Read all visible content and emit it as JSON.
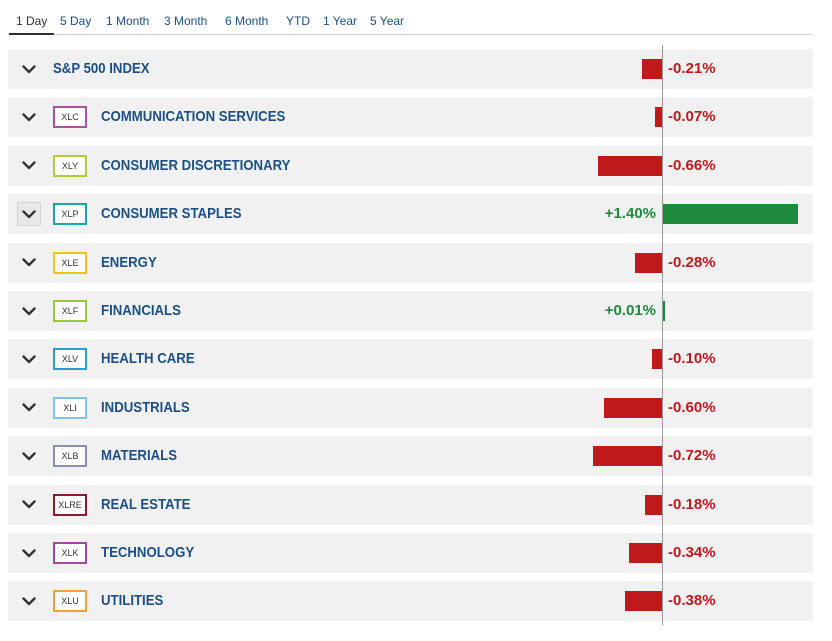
{
  "tabs": [
    "1 Day",
    "5 Day",
    "1 Month",
    "3 Month",
    "6 Month",
    "YTD",
    "1 Year",
    "5 Year"
  ],
  "active_tab": "1 Day",
  "rows": [
    {
      "ticker": "",
      "name": "S&P 500 INDEX",
      "change": -0.21,
      "label": "-0.21%",
      "badge_color": ""
    },
    {
      "ticker": "XLC",
      "name": "COMMUNICATION SERVICES",
      "change": -0.07,
      "label": "-0.07%",
      "badge_color": "#a4569a"
    },
    {
      "ticker": "XLY",
      "name": "CONSUMER DISCRETIONARY",
      "change": -0.66,
      "label": "-0.66%",
      "badge_color": "#b5c93b"
    },
    {
      "ticker": "XLP",
      "name": "CONSUMER STAPLES",
      "change": 1.4,
      "label": "+1.40%",
      "badge_color": "#1aa8a0"
    },
    {
      "ticker": "XLE",
      "name": "ENERGY",
      "change": -0.28,
      "label": "-0.28%",
      "badge_color": "#f0c419"
    },
    {
      "ticker": "XLF",
      "name": "FINANCIALS",
      "change": 0.01,
      "label": "+0.01%",
      "badge_color": "#9bc63f"
    },
    {
      "ticker": "XLV",
      "name": "HEALTH CARE",
      "change": -0.1,
      "label": "-0.10%",
      "badge_color": "#2a9fd6"
    },
    {
      "ticker": "XLI",
      "name": "INDUSTRIALS",
      "change": -0.6,
      "label": "-0.60%",
      "badge_color": "#7fc4e6"
    },
    {
      "ticker": "XLB",
      "name": "MATERIALS",
      "change": -0.72,
      "label": "-0.72%",
      "badge_color": "#8a8fb0"
    },
    {
      "ticker": "XLRE",
      "name": "REAL ESTATE",
      "change": -0.18,
      "label": "-0.18%",
      "badge_color": "#8b1a2b"
    },
    {
      "ticker": "XLK",
      "name": "TECHNOLOGY",
      "change": -0.34,
      "label": "-0.34%",
      "badge_color": "#a04a9c"
    },
    {
      "ticker": "XLU",
      "name": "UTILITIES",
      "change": -0.38,
      "label": "-0.38%",
      "badge_color": "#f0a13a"
    }
  ],
  "colors": {
    "negative": "#c0191c",
    "positive": "#1e8a3c",
    "link": "#1b4f86"
  },
  "icons": {
    "expand": "chevron-down-icon"
  }
}
